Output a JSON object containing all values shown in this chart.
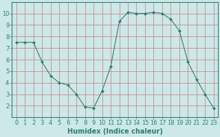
{
  "x": [
    0,
    1,
    2,
    3,
    4,
    5,
    6,
    7,
    8,
    9,
    10,
    11,
    12,
    13,
    14,
    15,
    16,
    17,
    18,
    19,
    20,
    21,
    22,
    23
  ],
  "y": [
    7.5,
    7.5,
    7.5,
    5.8,
    4.6,
    4.0,
    3.8,
    3.0,
    1.9,
    1.8,
    3.3,
    5.4,
    9.3,
    10.1,
    10.0,
    10.0,
    10.1,
    10.0,
    9.5,
    8.5,
    5.8,
    4.3,
    3.0,
    1.8
  ],
  "line_color": "#2e7d6e",
  "marker": "D",
  "marker_size": 2,
  "bg_color": "#cce8e8",
  "grid_color_major": "#cc8888",
  "grid_color_minor": "#ccaaaa",
  "xlabel": "Humidex (Indice chaleur)",
  "ylim": [
    1,
    11
  ],
  "xlim": [
    -0.5,
    23.5
  ],
  "xticks": [
    0,
    1,
    2,
    3,
    4,
    5,
    6,
    7,
    8,
    9,
    10,
    11,
    12,
    13,
    14,
    15,
    16,
    17,
    18,
    19,
    20,
    21,
    22,
    23
  ],
  "yticks": [
    2,
    3,
    4,
    5,
    6,
    7,
    8,
    9,
    10
  ],
  "xlabel_fontsize": 7,
  "tick_fontsize": 6,
  "title": ""
}
